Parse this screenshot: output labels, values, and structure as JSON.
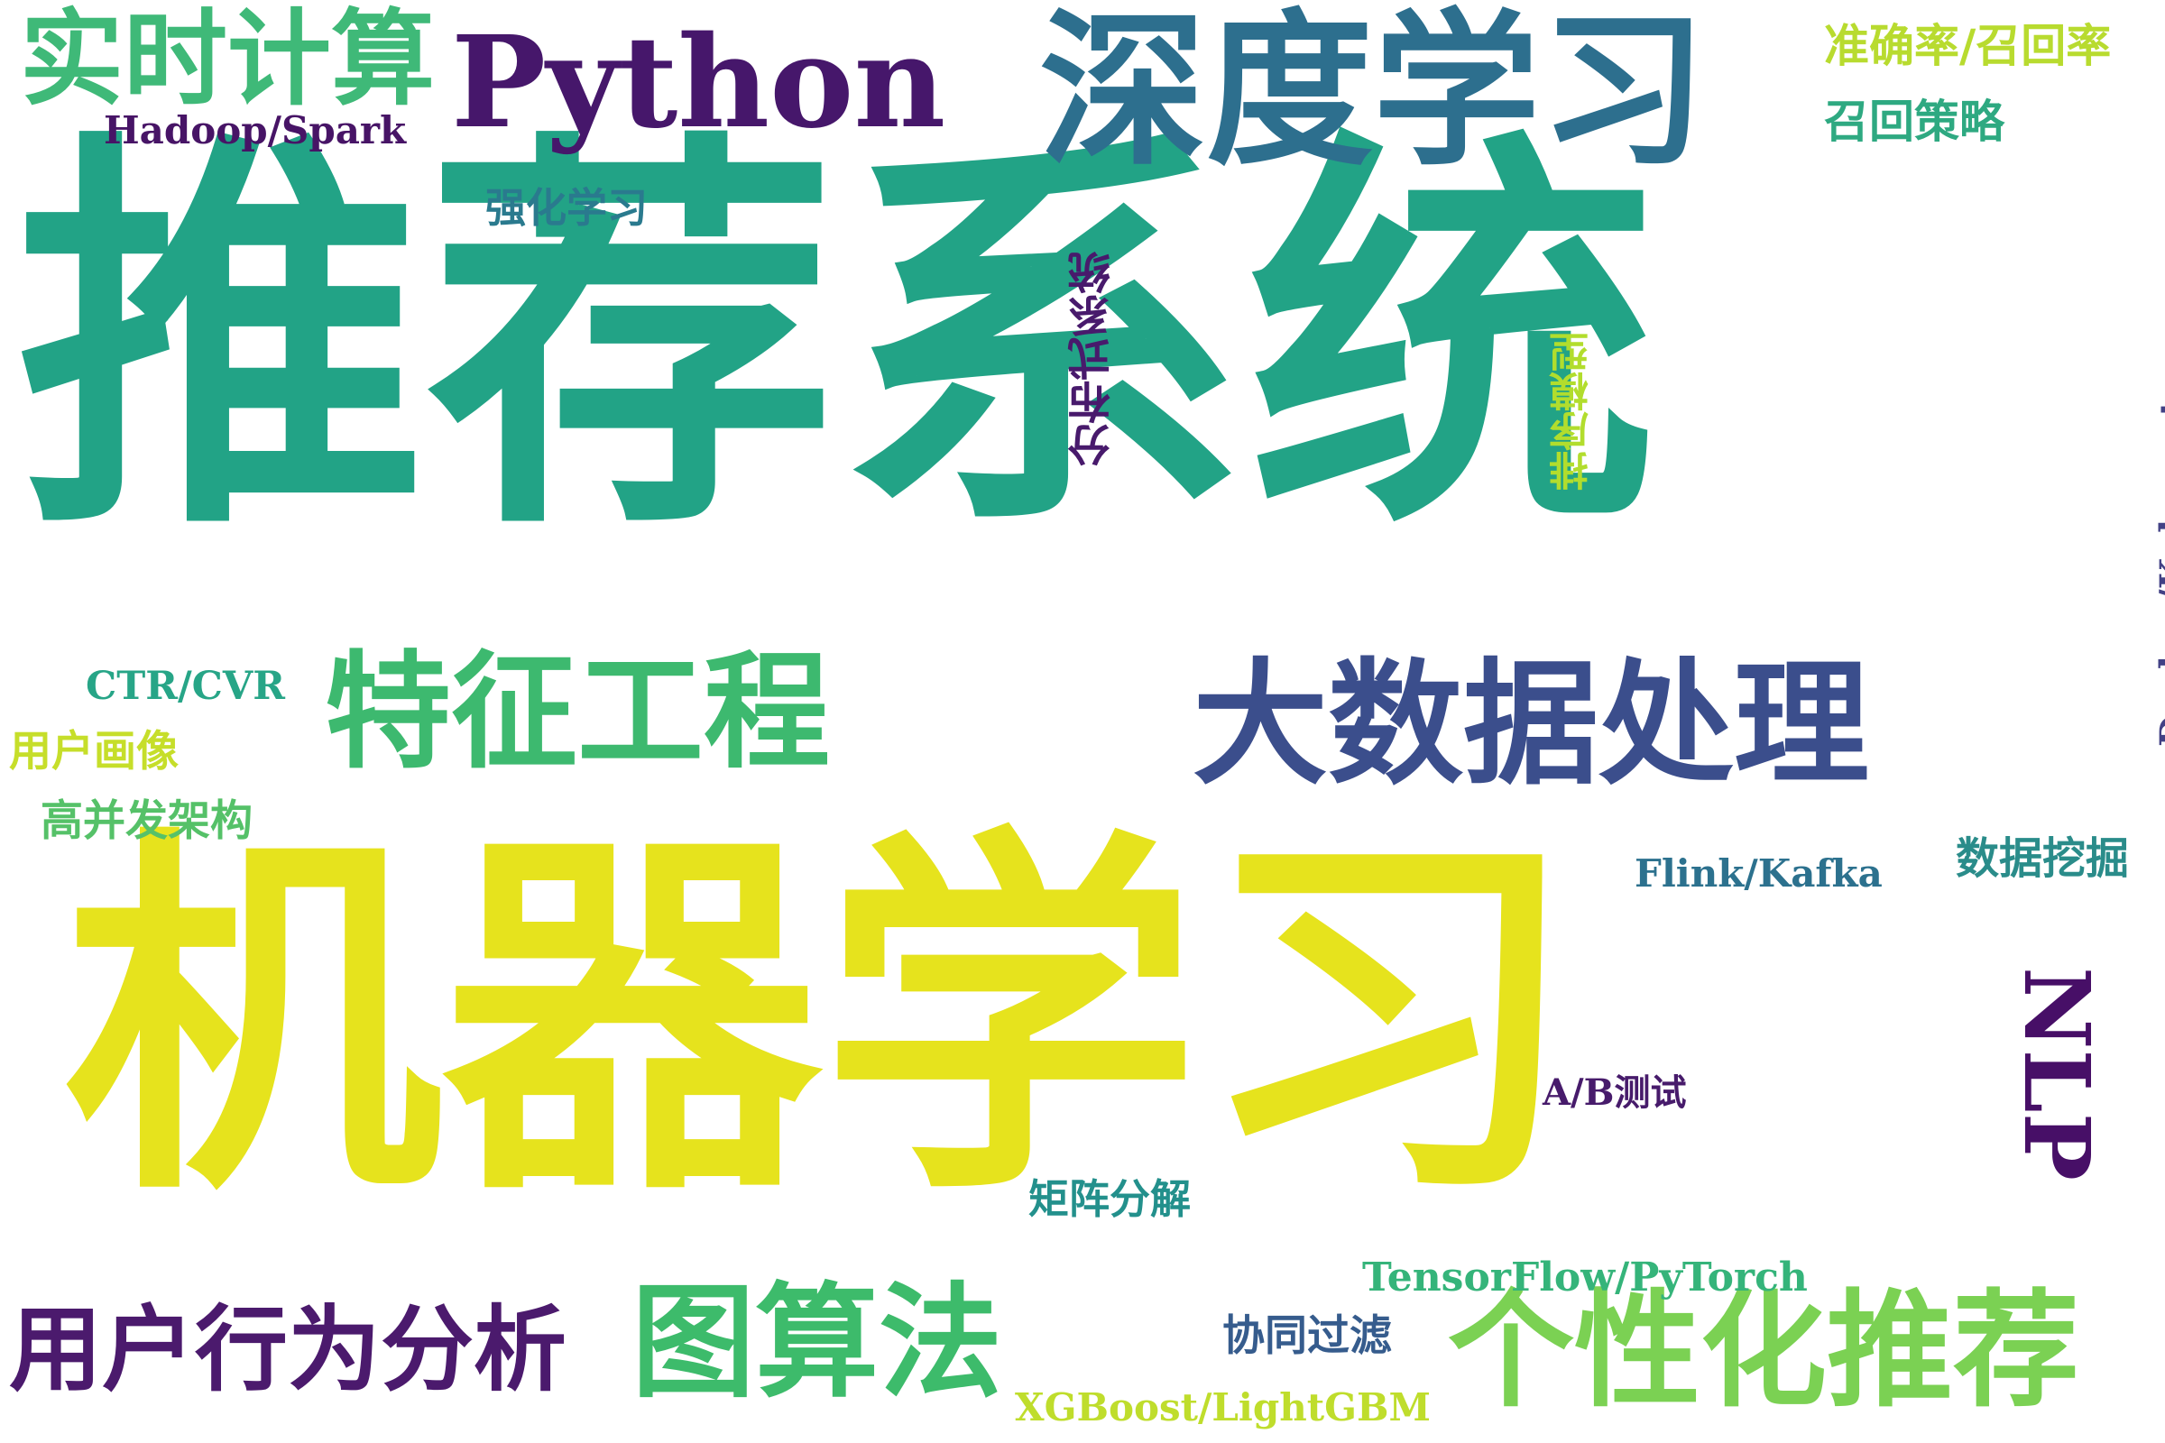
{
  "words": [
    {
      "id": "w1",
      "text": "推荐系统",
      "color": "#22a386"
    },
    {
      "id": "w2",
      "text": "机器学习",
      "color": "#e6e31d"
    },
    {
      "id": "w3",
      "text": "深度学习",
      "color": "#2d6f8e"
    },
    {
      "id": "w4",
      "text": "Python",
      "color": "#46176b"
    },
    {
      "id": "w5",
      "text": "实时计算",
      "color": "#3fb978"
    },
    {
      "id": "w6",
      "text": "大数据处理",
      "color": "#3b4e8c"
    },
    {
      "id": "w7",
      "text": "特征工程",
      "color": "#3db96f"
    },
    {
      "id": "w8",
      "text": "个性化推荐",
      "color": "#7bd153"
    },
    {
      "id": "w9",
      "text": "用户行为分析",
      "color": "#4b1a6d"
    },
    {
      "id": "w10",
      "text": "图算法",
      "color": "#3dbb6b"
    },
    {
      "id": "w11",
      "text": "NLP",
      "color": "#470f67"
    },
    {
      "id": "w12",
      "text": "Hadoop/Spark",
      "color": "#471466"
    },
    {
      "id": "w13",
      "text": "准确率/召回率",
      "color": "#b8db2f"
    },
    {
      "id": "w14",
      "text": "召回策略",
      "color": "#2ea981"
    },
    {
      "id": "w15",
      "text": "强化学习",
      "color": "#2a7a8e"
    },
    {
      "id": "w16",
      "text": "分布式系统",
      "color": "#481a6c"
    },
    {
      "id": "w17",
      "text": "排序模型",
      "color": "#b2dd2d"
    },
    {
      "id": "w18",
      "text": "Docker/Kubernetes",
      "color": "#424185"
    },
    {
      "id": "w19",
      "text": "CTR/CVR",
      "color": "#27a587"
    },
    {
      "id": "w20",
      "text": "用户画像",
      "color": "#c6de2a"
    },
    {
      "id": "w21",
      "text": "高并发架构",
      "color": "#55c168"
    },
    {
      "id": "w22",
      "text": "Flink/Kafka",
      "color": "#2c718e"
    },
    {
      "id": "w23",
      "text": "数据挖掘",
      "color": "#2a8c8a"
    },
    {
      "id": "w24",
      "text": "A/B测试",
      "color": "#471b6b"
    },
    {
      "id": "w25",
      "text": "矩阵分解",
      "color": "#23908c"
    },
    {
      "id": "w26",
      "text": "TensorFlow/PyTorch",
      "color": "#35b47a"
    },
    {
      "id": "w27",
      "text": "协同过滤",
      "color": "#365c8d"
    },
    {
      "id": "w28",
      "text": "XGBoost/LightGBM",
      "color": "#bfdd2c"
    }
  ]
}
